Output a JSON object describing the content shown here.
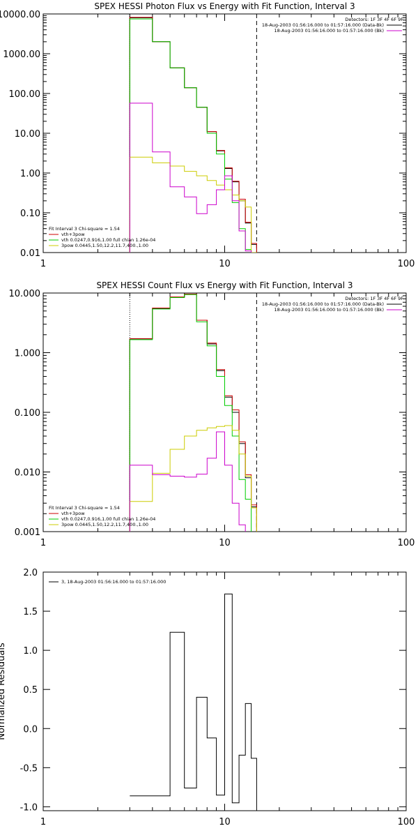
{
  "chart_data": [
    {
      "type": "line",
      "title": "SPEX HESSI Photon Flux vs Energy with Fit Function, Interval 3",
      "xscale": "log",
      "yscale": "log",
      "xlim": [
        1,
        100
      ],
      "ylim": [
        0.01,
        10000
      ],
      "x_tick_labels": [
        "1",
        "10",
        "100"
      ],
      "y_tick_labels": [
        "0.01",
        "0.10",
        "1.00",
        "10.00",
        "100.00",
        "1000.00",
        "10000.00"
      ],
      "legend_right": [
        {
          "text": "Detectors: 1F 3F 4F 6F 9F",
          "color": ""
        },
        {
          "text": "18-Aug-2003 01:56:16.000 to 01:57:16.000 (Data-Bk)",
          "color": "#000000"
        },
        {
          "text": "18-Aug-2003 01:56:16.000 to 01:57:16.000 (Bk)",
          "color": "#cc00cc"
        }
      ],
      "legend_left": [
        {
          "text": "Fit Interval 3   Chi-square = 1.54",
          "color": ""
        },
        {
          "text": "vth+3pow",
          "color": "#cc0000"
        },
        {
          "text": "vth 0.0247,0.916,1.00  full chian 1.26e-04",
          "color": "#00cc00"
        },
        {
          "text": "3pow 0.0445,1.50,12.2,11.7,400.,1.00",
          "color": "#cccc00"
        }
      ],
      "vlines": [
        {
          "x": 3,
          "style": "dotted",
          "color": "#000000"
        },
        {
          "x": 15,
          "style": "dashed",
          "color": "#000000"
        }
      ],
      "edges": [
        3,
        4,
        5,
        6,
        7,
        8,
        9,
        10,
        11,
        12,
        13,
        14,
        15,
        16
      ],
      "series": [
        {
          "name": "Data-Bk",
          "color": "#000000",
          "values": [
            8000,
            2000,
            440,
            140,
            45,
            11,
            3.6,
            1.3,
            0.6,
            0.2,
            0.055,
            0.016,
            null
          ]
        },
        {
          "name": "vth+3pow",
          "color": "#cc0000",
          "values": [
            8200,
            2000,
            440,
            140,
            45,
            11,
            3.7,
            1.35,
            0.62,
            0.22,
            0.058,
            0.017,
            null
          ]
        },
        {
          "name": "vth",
          "color": "#00cc00",
          "values": [
            7500,
            2000,
            440,
            140,
            45,
            10,
            3,
            0.7,
            0.18,
            0.04,
            0.012,
            null,
            null
          ]
        },
        {
          "name": "3pow",
          "color": "#cccc00",
          "values": [
            2.5,
            1.8,
            1.5,
            1.1,
            0.85,
            0.65,
            0.5,
            0.38,
            0.28,
            0.2,
            0.14,
            0.01,
            null
          ]
        },
        {
          "name": "Bk",
          "color": "#cc00cc",
          "values": [
            57,
            3.4,
            0.45,
            0.25,
            0.095,
            0.16,
            0.38,
            0.85,
            0.2,
            0.035,
            0.011,
            null,
            null
          ]
        }
      ]
    },
    {
      "type": "line",
      "title": "SPEX HESSI Count Flux vs Energy with Fit Function, Interval 3",
      "xscale": "log",
      "yscale": "log",
      "xlim": [
        1,
        100
      ],
      "ylim": [
        0.001,
        10
      ],
      "x_tick_labels": [
        "1",
        "10",
        "100"
      ],
      "y_tick_labels": [
        "0.001",
        "0.010",
        "0.100",
        "1.000",
        "10.000"
      ],
      "legend_right": [
        {
          "text": "Detectors: 1F 3F 4F 6F 9F",
          "color": ""
        },
        {
          "text": "18-Aug-2003 01:56:16.000 to 01:57:16.000 (Data-Bk)",
          "color": "#000000"
        },
        {
          "text": "18-Aug-2003 01:56:16.000 to 01:57:16.000 (Bk)",
          "color": "#cc00cc"
        }
      ],
      "legend_left": [
        {
          "text": "Fit Interval 3   Chi-square = 1.54",
          "color": ""
        },
        {
          "text": "vth+3pow",
          "color": "#cc0000"
        },
        {
          "text": "vth 0.0247,0.916,1.00  full chian 1.26e-04",
          "color": "#00cc00"
        },
        {
          "text": "3pow 0.0445,1.50,12.2,11.7,400.,1.00",
          "color": "#cccc00"
        }
      ],
      "vlines": [
        {
          "x": 3,
          "style": "dotted",
          "color": "#000000"
        },
        {
          "x": 15,
          "style": "dashed",
          "color": "#000000"
        }
      ],
      "edges": [
        3,
        4,
        5,
        6,
        7,
        8,
        9,
        10,
        11,
        12,
        13,
        14,
        15,
        16
      ],
      "series": [
        {
          "name": "Data-Bk",
          "color": "#000000",
          "values": [
            1.7,
            5.5,
            8.5,
            9.5,
            3.5,
            1.4,
            0.5,
            0.18,
            0.1,
            0.03,
            0.008,
            0.0026,
            null
          ]
        },
        {
          "name": "vth+3pow",
          "color": "#cc0000",
          "values": [
            1.72,
            5.6,
            8.6,
            9.6,
            3.5,
            1.45,
            0.52,
            0.19,
            0.11,
            0.032,
            0.009,
            0.0028,
            null
          ]
        },
        {
          "name": "vth",
          "color": "#00cc00",
          "values": [
            1.65,
            5.4,
            8.4,
            9.4,
            3.3,
            1.3,
            0.4,
            0.13,
            0.04,
            0.0075,
            0.0035,
            0.0005,
            null
          ]
        },
        {
          "name": "3pow",
          "color": "#cccc00",
          "values": [
            0.0032,
            0.0095,
            0.024,
            0.04,
            0.05,
            0.055,
            0.058,
            0.06,
            0.05,
            0.02,
            0.0085,
            0.0025,
            null
          ]
        },
        {
          "name": "Bk",
          "color": "#cc00cc",
          "values": [
            0.013,
            0.009,
            0.0085,
            0.0082,
            0.0092,
            0.017,
            0.047,
            0.013,
            0.003,
            0.0013,
            null,
            null,
            null
          ]
        }
      ]
    },
    {
      "type": "line",
      "title": "",
      "xscale": "log",
      "yscale": "linear",
      "xlim": [
        1,
        100
      ],
      "ylim": [
        -1.05,
        2.0
      ],
      "ylabel": "Normalized Residuals",
      "x_tick_labels": [
        "1",
        "10",
        "100"
      ],
      "y_ticks": [
        -1.0,
        -0.5,
        0.0,
        0.5,
        1.0,
        1.5,
        2.0
      ],
      "y_tick_labels": [
        "-1.0",
        "-0.5",
        "0.0",
        "0.5",
        "1.0",
        "1.5",
        "2.0"
      ],
      "legend_left": [
        {
          "text": "3, 18-Aug-2003 01:56:16.000 to 01:57:16.000",
          "color": "#000000"
        }
      ],
      "edges": [
        3,
        4,
        5,
        6,
        7,
        8,
        9,
        10,
        11,
        12,
        13,
        14,
        15
      ],
      "series": [
        {
          "name": "3, 18-Aug-2003 01:56:16.000 to 01:57:16.000",
          "color": "#000000",
          "values": [
            -0.86,
            -0.86,
            1.23,
            -0.76,
            0.4,
            -0.12,
            -0.85,
            1.72,
            -0.95,
            -0.34,
            0.32,
            -0.38
          ]
        }
      ]
    }
  ]
}
